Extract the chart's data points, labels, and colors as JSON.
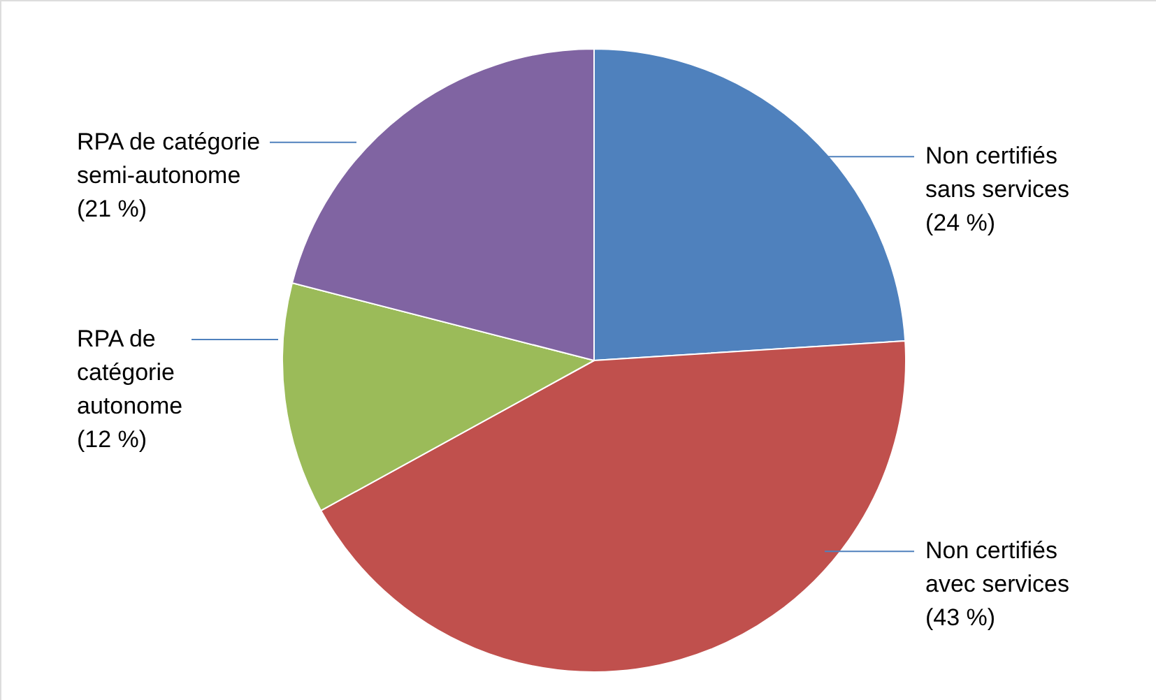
{
  "chart_data": {
    "type": "pie",
    "categories": [
      "Non certifiés\nsans services",
      "Non certifiés\navec services",
      "RPA de\ncatégorie\nautonome",
      "RPA de catégorie\nsemi-autonome"
    ],
    "values": [
      24,
      43,
      12,
      21
    ],
    "value_labels": [
      "(24 %)",
      "(43 %)",
      "(12 %)",
      "(21 %)"
    ],
    "colors": [
      "#4f81bd",
      "#c0504d",
      "#9bbb59",
      "#8064a2"
    ]
  }
}
